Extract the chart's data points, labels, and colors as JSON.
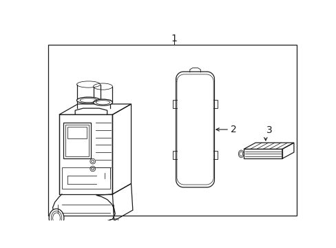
{
  "background_color": "#ffffff",
  "line_color": "#1a1a1a",
  "label_1": "1",
  "label_2": "2",
  "label_3": "3",
  "fig_width": 4.89,
  "fig_height": 3.6,
  "dpi": 100
}
